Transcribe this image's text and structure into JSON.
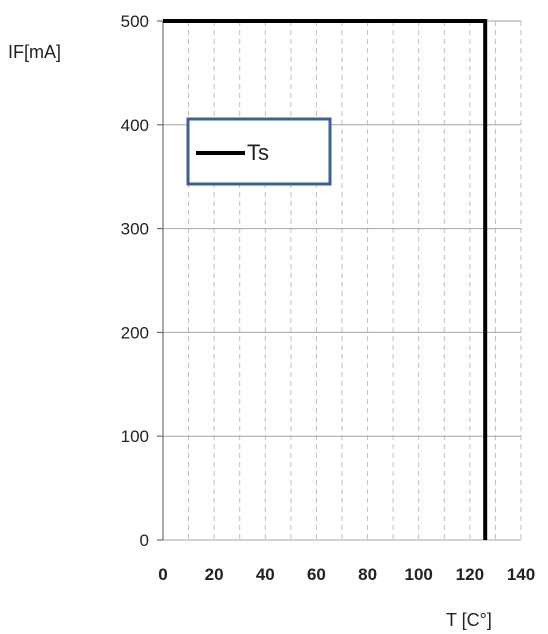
{
  "chart_data": {
    "type": "line",
    "xlabel": "T [C°]",
    "ylabel": "IF[mA]",
    "xlim": [
      0,
      140
    ],
    "ylim": [
      0,
      500
    ],
    "x_ticks": [
      "0",
      "20",
      "40",
      "60",
      "80",
      "100",
      "120",
      "140"
    ],
    "y_ticks": [
      "0",
      "100",
      "200",
      "300",
      "400",
      "500"
    ],
    "grid": {
      "horizontal_major": true,
      "vertical_minor_dashed": true,
      "vertical_minor_step": 10
    },
    "legend": {
      "position": "upper-left"
    },
    "series": [
      {
        "name": "Ts",
        "color": "#000000",
        "x": [
          0,
          126,
          126
        ],
        "y": [
          500,
          500,
          0
        ]
      }
    ],
    "colors": {
      "major_grid": "#a6a6a6",
      "minor_grid": "#bfbfbf",
      "legend_border": "#3f5f8f",
      "series": "#000000"
    }
  }
}
